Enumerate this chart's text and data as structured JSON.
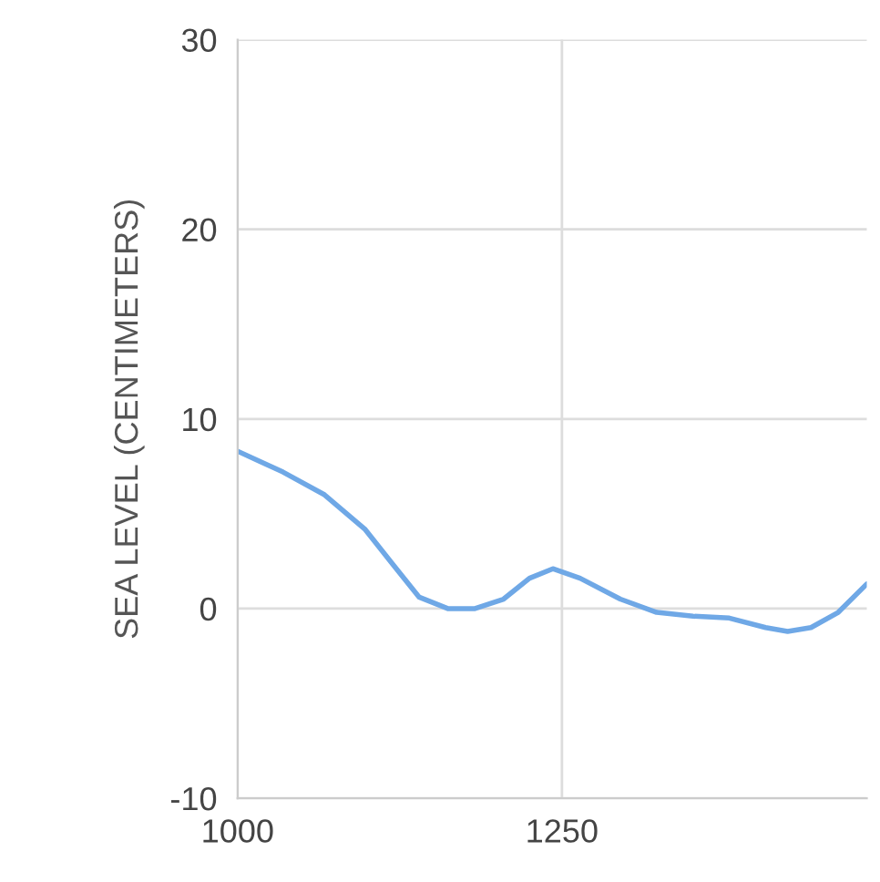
{
  "chart_data": {
    "type": "line",
    "ylabel": "SEA LEVEL (CENTIMETERS)",
    "x": [
      1000,
      1035,
      1067,
      1098,
      1120,
      1140,
      1162,
      1183,
      1205,
      1225,
      1243,
      1264,
      1295,
      1323,
      1351,
      1379,
      1407,
      1424,
      1442,
      1463,
      1485
    ],
    "series": [
      {
        "color": "#6fa8e6",
        "values": [
          8.3,
          7.2,
          6.0,
          4.2,
          2.3,
          0.6,
          0,
          0,
          0.5,
          1.6,
          2.1,
          1.6,
          0.5,
          -0.2,
          -0.4,
          -0.5,
          -1.0,
          -1.2,
          -1.0,
          -0.2,
          1.3
        ]
      }
    ],
    "xlim": [
      1000,
      1485
    ],
    "xticks": [
      1000,
      1250
    ],
    "ylim": [
      -10,
      30
    ],
    "yticks": [
      -10,
      0,
      10,
      20,
      30
    ],
    "grid": true,
    "marker": "none",
    "line_style": "solid"
  }
}
